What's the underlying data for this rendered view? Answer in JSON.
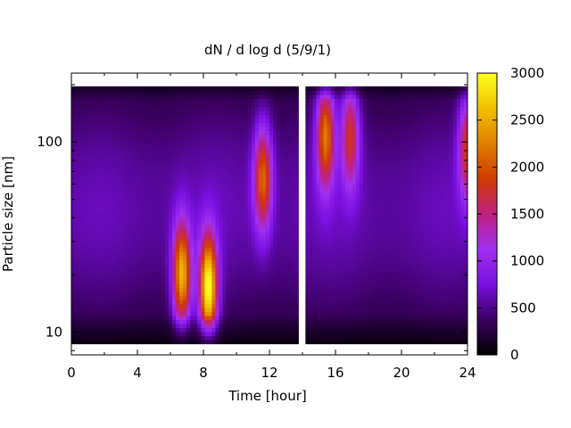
{
  "chart_data": {
    "type": "heatmap",
    "title": "dN / d log d (5/9/1)",
    "xlabel": "Time [hour]",
    "ylabel": "Particle size [nm]",
    "x_range": [
      0,
      24
    ],
    "x_ticks": [
      0,
      4,
      8,
      12,
      16,
      20,
      24
    ],
    "y_scale": "log",
    "y_range": [
      7.6,
      230
    ],
    "y_ticks": [
      10,
      100
    ],
    "colorbar": {
      "range": [
        0,
        3000
      ],
      "ticks": [
        0,
        500,
        1000,
        1500,
        2000,
        2500,
        3000
      ],
      "palette": [
        "#000000",
        "#3a0060",
        "#7a10e0",
        "#a030f0",
        "#c02080",
        "#d03a00",
        "#e08000",
        "#f0c000",
        "#ffff20"
      ]
    },
    "data_gap_hours": [
      13.75,
      14.15
    ],
    "background_level": 600,
    "events": [
      {
        "time": 6.7,
        "size_nm": 20,
        "peak": 2100
      },
      {
        "time": 8.3,
        "size_nm": 17,
        "peak": 2600
      },
      {
        "time": 11.6,
        "size_nm": 65,
        "peak": 1600
      },
      {
        "time": 15.4,
        "size_nm": 110,
        "peak": 1750
      },
      {
        "time": 16.9,
        "size_nm": 110,
        "peak": 1350
      },
      {
        "time": 24.0,
        "size_nm": 95,
        "peak": 1300
      }
    ]
  }
}
